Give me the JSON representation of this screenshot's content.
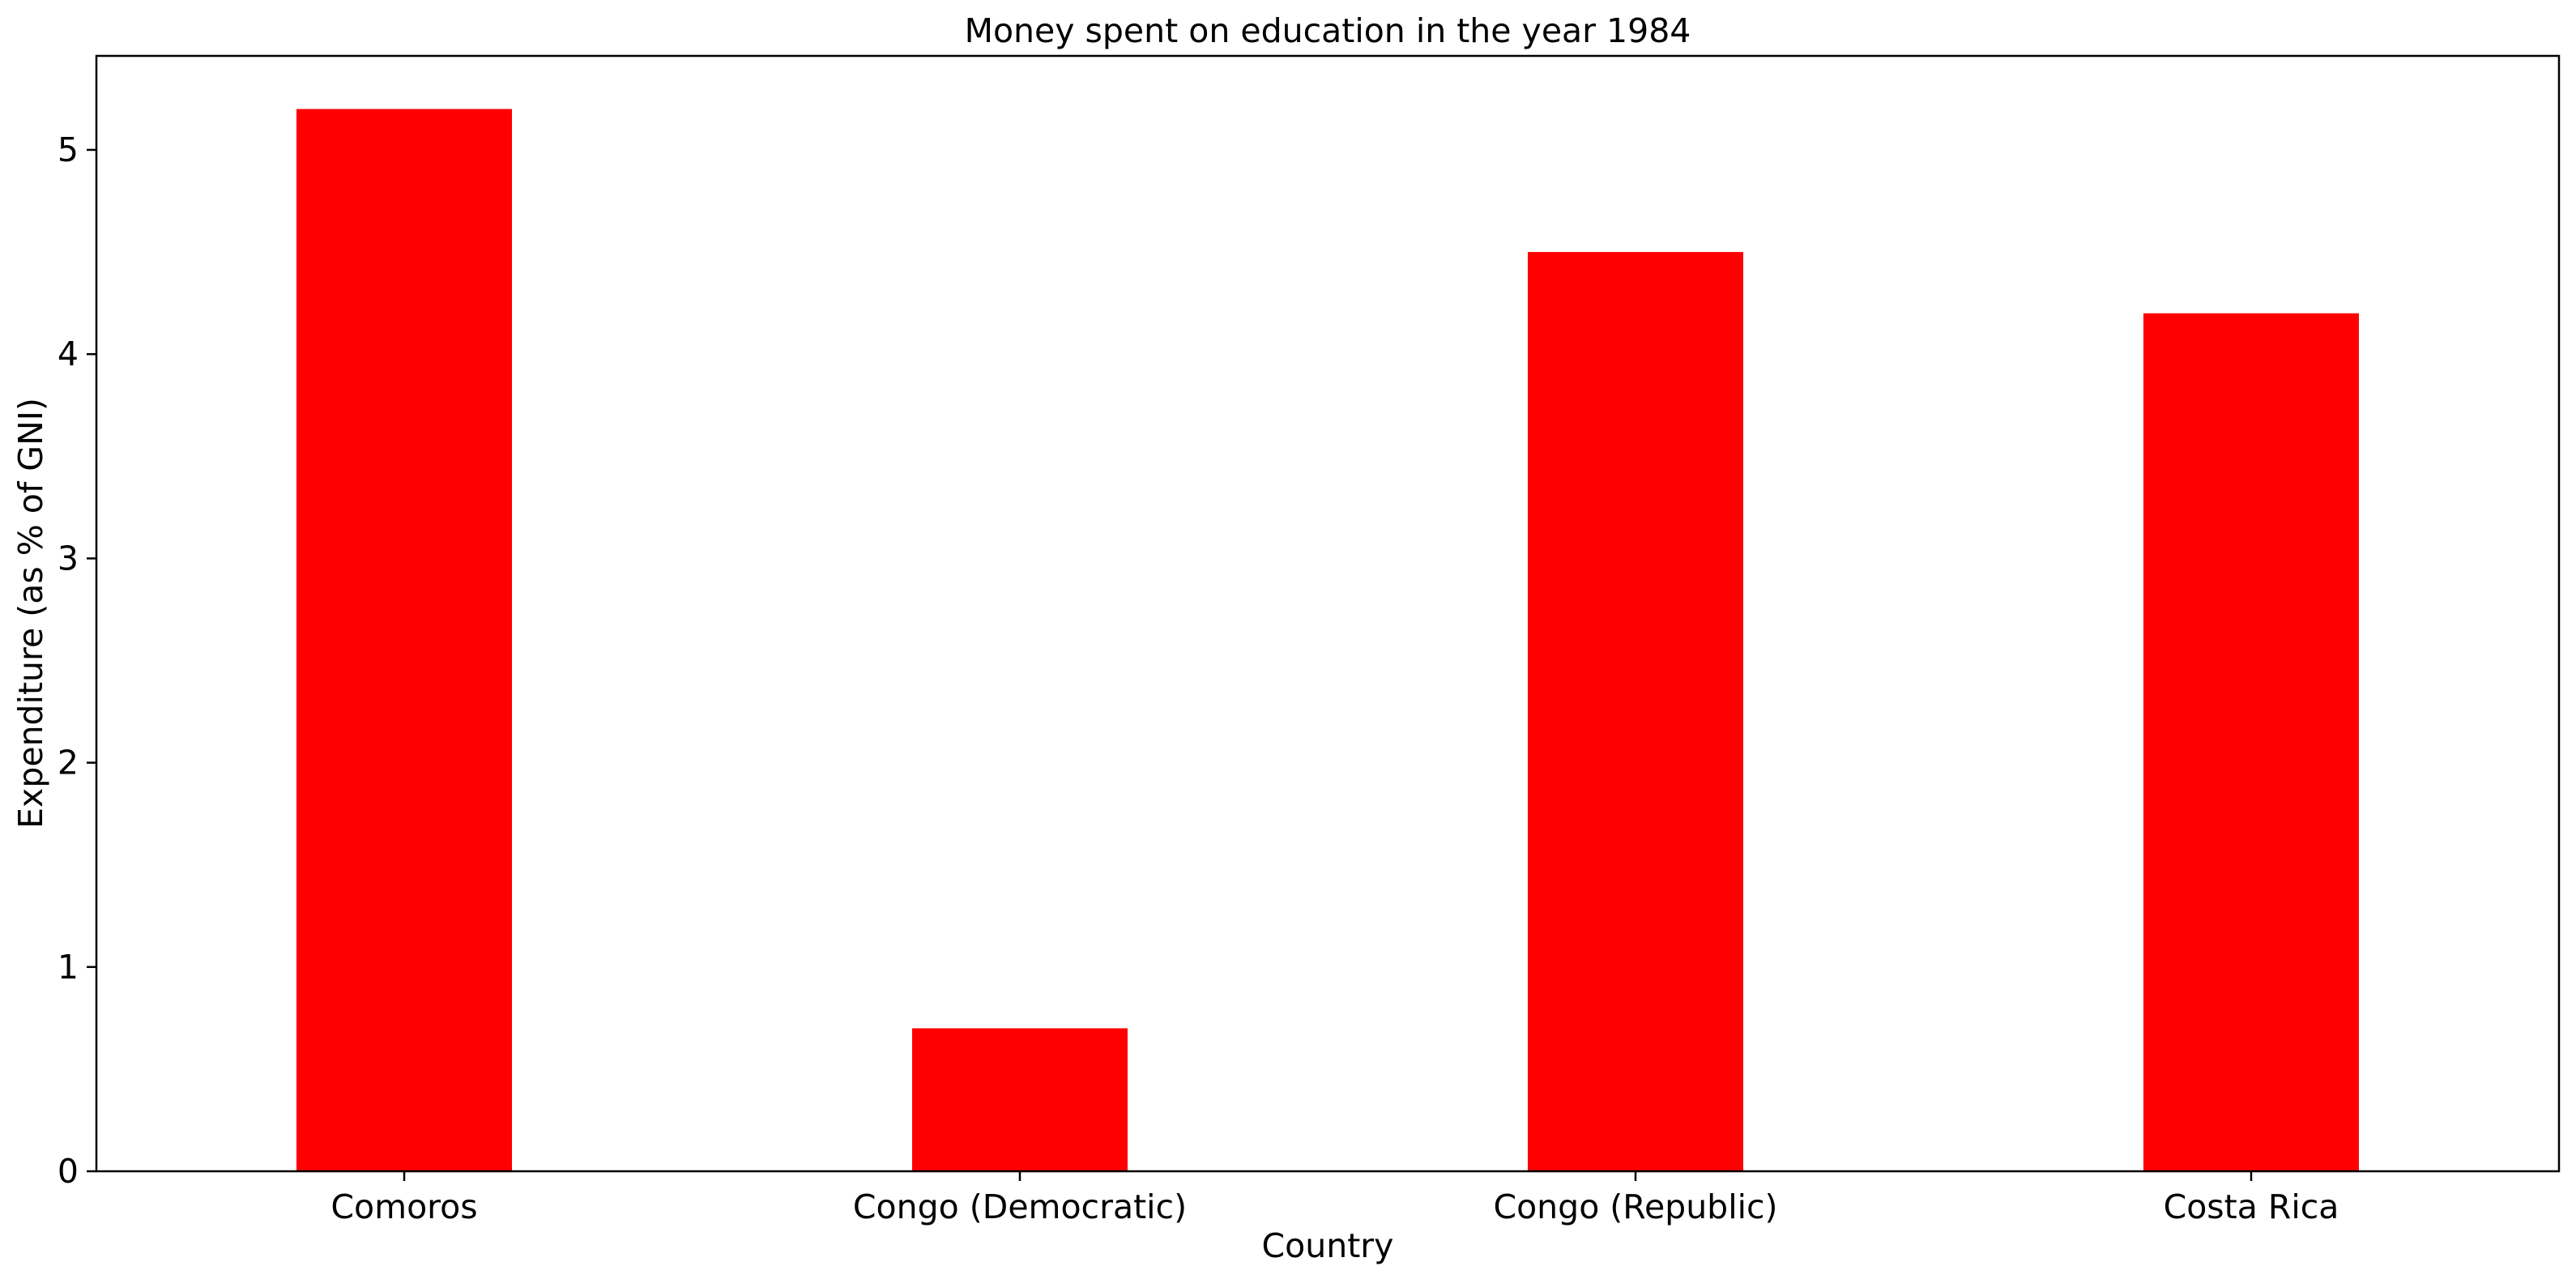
{
  "chart_data": {
    "type": "bar",
    "title": "Money spent on education in the year 1984",
    "xlabel": "Country",
    "ylabel": "Expenditure (as % of GNI)",
    "categories": [
      "Comoros",
      "Congo (Democratic)",
      "Congo (Republic)",
      "Costa Rica"
    ],
    "series": [
      {
        "values": [
          5.2,
          0.7,
          4.5,
          4.2
        ],
        "color": "#ff0000"
      }
    ],
    "ylim": [
      0,
      5.46
    ],
    "yticks": [
      "0",
      "1",
      "2",
      "3",
      "4",
      "5"
    ],
    "grid": false,
    "legend": "none"
  }
}
